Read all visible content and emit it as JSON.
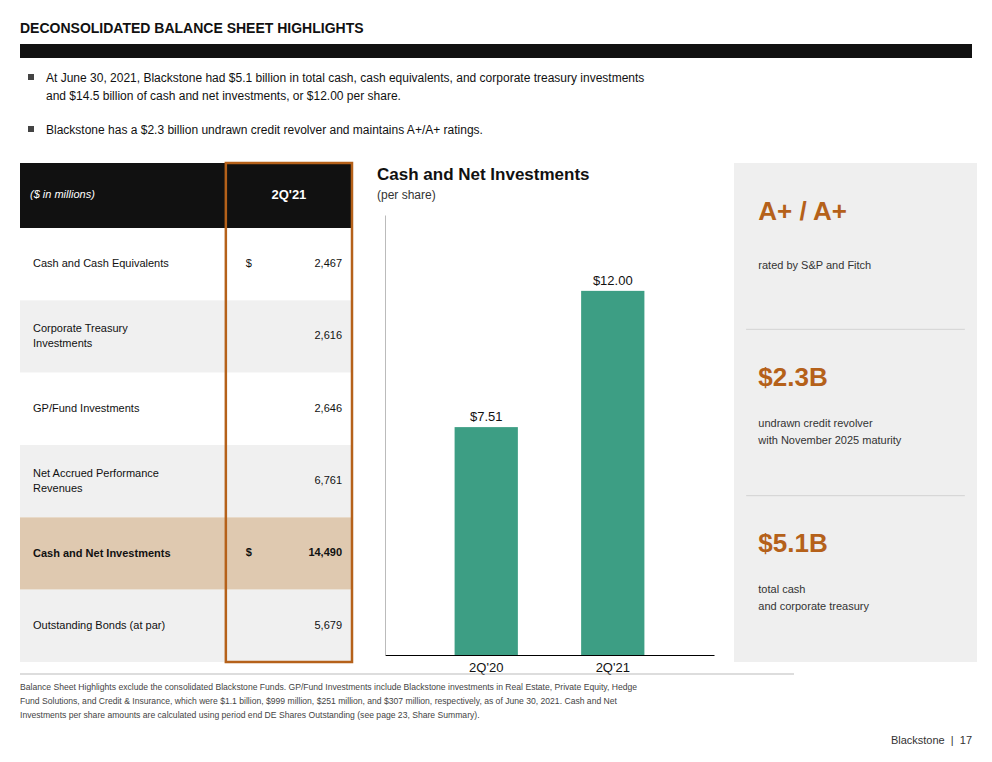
{
  "chart_data": {
    "type": "bar",
    "title": "Cash and Net Investments",
    "subtitle": "(per share)",
    "categories": [
      "2Q'20",
      "2Q'21"
    ],
    "values": [
      7.51,
      12.0
    ],
    "value_labels": [
      "$7.51",
      "$12.00"
    ],
    "color": "#3d9e84",
    "ylim": [
      0,
      14.5
    ],
    "data_labels": true,
    "tick_labels": "x",
    "grid": false
  },
  "page": {
    "title": "DECONSOLIDATED BALANCE SHEET HIGHLIGHTS",
    "header_bg": "#111111",
    "bullets": [
      "At June 30, 2021, Blackstone had $5.1 billion in total cash, cash equivalents, and corporate treasury investments\nand $14.5 billion of cash and net investments, or $12.00 per share.",
      "Blackstone has a $2.3 billion undrawn credit revolver and maintains A+/A+ ratings."
    ],
    "table": {
      "border_color": "#b5611a",
      "header": [
        "($ in millions)",
        "2Q'21"
      ],
      "rows": [
        {
          "label": "Cash and Cash Equivalents",
          "dollar": "$",
          "value": "2,467",
          "bg": "#ffffff",
          "bold": false
        },
        {
          "label": "Corporate Treasury\nInvestments",
          "value": "2,616",
          "bg": "#f0f0f0",
          "bold": false
        },
        {
          "label": "GP/Fund Investments",
          "value": "2,646",
          "bg": "#ffffff",
          "bold": false
        },
        {
          "label": "Net Accrued Performance\nRevenues",
          "value": "6,761",
          "bg": "#f0f0f0",
          "bold": false
        },
        {
          "label": "Cash and Net Investments",
          "dollar": "$",
          "value": "14,490",
          "bg": "#dfc9b0",
          "bold": true
        },
        {
          "label": "Outstanding Bonds (at par)",
          "value": "5,679",
          "bg": "#f0f0f0",
          "bold": false
        }
      ]
    },
    "panel": {
      "bg": "#efefef",
      "items": [
        {
          "value": "A+ / A+",
          "desc": "rated by S&P and Fitch",
          "color": "#b5611a"
        },
        {
          "value": "$2.3B",
          "desc": "undrawn credit revolver\nwith November 2025 maturity",
          "color": "#b5611a"
        },
        {
          "value": "$5.1B",
          "desc": "total cash\nand corporate treasury",
          "color": "#b5611a"
        }
      ]
    },
    "footer": {
      "text": "Balance Sheet Highlights exclude the consolidated Blackstone Funds. GP/Fund Investments include Blackstone investments in Real Estate, Private Equity, Hedge\nFund Solutions, and Credit & Insurance, which were $1.1 billion, $999 million, $251 million, and $307 million, respectively, as of June 30, 2021. Cash and Net\nInvestments per share amounts are calculated using period end DE Shares Outstanding (see page 23, Share Summary).",
      "right": "Blackstone  |  17"
    }
  }
}
